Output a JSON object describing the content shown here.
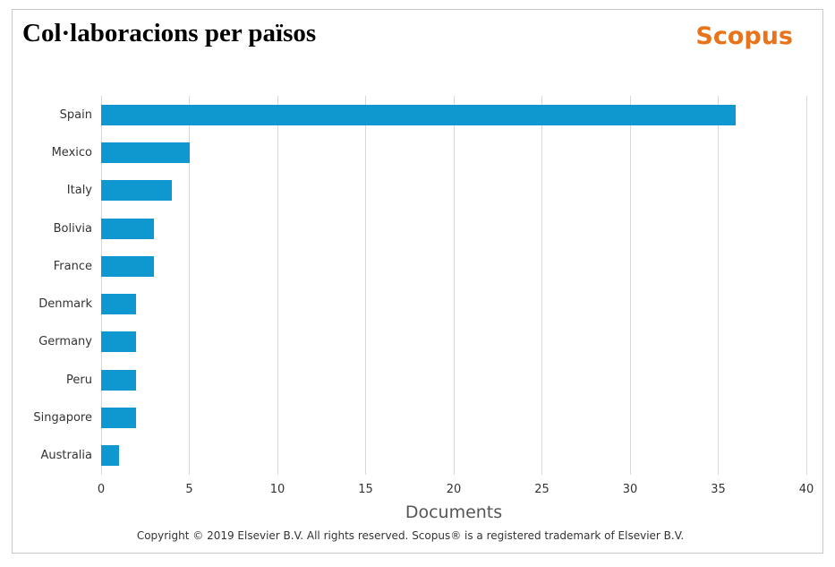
{
  "header": {
    "title": "Col·laboracions per països",
    "logo": "Scopus"
  },
  "chart_data": {
    "type": "bar",
    "orientation": "horizontal",
    "title": "Col·laboracions per països",
    "categories": [
      "Spain",
      "Mexico",
      "Italy",
      "Bolivia",
      "France",
      "Denmark",
      "Germany",
      "Peru",
      "Singapore",
      "Australia"
    ],
    "values": [
      36,
      5,
      4,
      3,
      3,
      2,
      2,
      2,
      2,
      1
    ],
    "xlabel": "Documents",
    "ylabel": "",
    "xlim": [
      0,
      40
    ],
    "xticks": [
      0,
      5,
      10,
      15,
      20,
      25,
      30,
      35,
      40
    ],
    "grid": true,
    "legend": "none"
  },
  "footer": {
    "copyright": "Copyright © 2019 Elsevier B.V. All rights reserved. Scopus® is a registered trademark of Elsevier B.V."
  },
  "colors": {
    "bar": "#0f98d0",
    "orange": "#e8731a",
    "gridline": "#d8d8d8",
    "border": "#c9c9c9",
    "text": "#333333",
    "muted": "#555555"
  }
}
